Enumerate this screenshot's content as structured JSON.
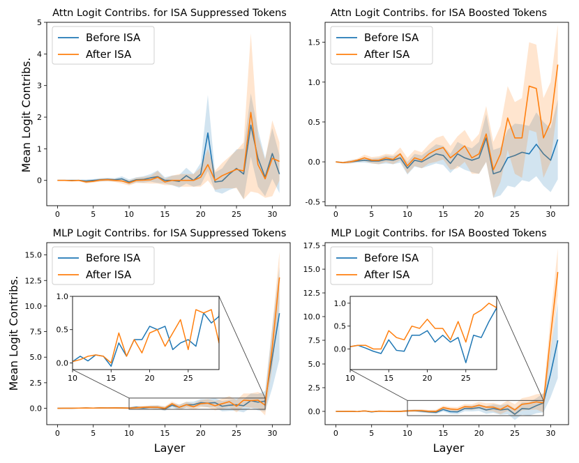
{
  "chart_data": [
    {
      "type": "line",
      "title": "Attn Logit Contribs. for ISA Suppressed Tokens",
      "xlabel": "",
      "ylabel": "Mean Logit Contribs.",
      "xlim": [
        -1.5,
        32.5
      ],
      "ylim": [
        -0.8,
        5
      ],
      "xticks": [
        0,
        5,
        10,
        15,
        20,
        25,
        30
      ],
      "yticks": [
        0,
        1,
        2,
        3,
        4,
        5
      ],
      "legend": "top-left",
      "x": [
        0,
        1,
        2,
        3,
        4,
        5,
        6,
        7,
        8,
        9,
        10,
        11,
        12,
        13,
        14,
        15,
        16,
        17,
        18,
        19,
        20,
        21,
        22,
        23,
        24,
        25,
        26,
        27,
        28,
        29,
        30,
        31
      ],
      "series": [
        {
          "name": "Before ISA",
          "color": "#1f77b4",
          "values": [
            0,
            0,
            0,
            0,
            -0.02,
            0,
            0.02,
            0.03,
            0.02,
            0.05,
            -0.05,
            0.02,
            0.03,
            0.08,
            0.12,
            0,
            0,
            -0.03,
            0.15,
            0,
            0.2,
            1.5,
            -0.05,
            -0.02,
            0.2,
            0.38,
            0.2,
            1.75,
            0.7,
            0.1,
            0.85,
            0.2
          ],
          "band": [
            0.01,
            0.01,
            0.02,
            0.02,
            0.05,
            0.04,
            0.05,
            0.05,
            0.05,
            0.08,
            0.08,
            0.08,
            0.1,
            0.12,
            0.2,
            0.1,
            0.15,
            0.2,
            0.25,
            0.2,
            0.35,
            1.2,
            0.3,
            0.4,
            0.5,
            0.6,
            0.8,
            1.0,
            0.9,
            0.6,
            0.8,
            0.6
          ]
        },
        {
          "name": "After ISA",
          "color": "#ff7f0e",
          "values": [
            0,
            0,
            -0.01,
            0,
            -0.05,
            -0.03,
            0.01,
            0.02,
            0,
            -0.02,
            -0.08,
            0,
            0.01,
            0.02,
            0.1,
            -0.05,
            0,
            0,
            0,
            0,
            0.1,
            0.5,
            0,
            0.15,
            0.25,
            0.35,
            0.3,
            2.15,
            0.5,
            0.05,
            0.7,
            0.6
          ],
          "band": [
            0.01,
            0.01,
            0.02,
            0.02,
            0.05,
            0.04,
            0.05,
            0.05,
            0.05,
            0.08,
            0.08,
            0.08,
            0.1,
            0.12,
            0.2,
            0.1,
            0.15,
            0.2,
            0.2,
            0.2,
            0.3,
            0.5,
            0.3,
            0.4,
            0.5,
            0.6,
            0.9,
            2.5,
            0.9,
            0.6,
            1.2,
            0.6
          ]
        }
      ]
    },
    {
      "type": "line",
      "title": "Attn Logit Contribs. for ISA Boosted Tokens",
      "xlabel": "",
      "ylabel": "",
      "xlim": [
        -1.5,
        32.5
      ],
      "ylim": [
        -0.55,
        1.75
      ],
      "xticks": [
        0,
        5,
        10,
        15,
        20,
        25,
        30
      ],
      "yticks": [
        -0.5,
        0.0,
        0.5,
        1.0,
        1.5
      ],
      "legend": "top-left",
      "x": [
        0,
        1,
        2,
        3,
        4,
        5,
        6,
        7,
        8,
        9,
        10,
        11,
        12,
        13,
        14,
        15,
        16,
        17,
        18,
        19,
        20,
        21,
        22,
        23,
        24,
        25,
        26,
        27,
        28,
        29,
        30,
        31
      ],
      "series": [
        {
          "name": "Before ISA",
          "color": "#1f77b4",
          "values": [
            0,
            -0.01,
            0,
            0.01,
            0.02,
            0.01,
            0.01,
            0.03,
            0.02,
            0.05,
            -0.08,
            0.02,
            0,
            0.05,
            0.1,
            0.08,
            -0.02,
            0.1,
            0.05,
            0.02,
            0.05,
            0.3,
            -0.15,
            -0.12,
            0.05,
            0.08,
            0.12,
            0.1,
            0.22,
            0.1,
            0.02,
            0.28
          ],
          "band": [
            0.01,
            0.01,
            0.02,
            0.02,
            0.03,
            0.03,
            0.04,
            0.05,
            0.05,
            0.06,
            0.08,
            0.08,
            0.08,
            0.1,
            0.12,
            0.12,
            0.12,
            0.15,
            0.15,
            0.15,
            0.2,
            0.3,
            0.3,
            0.3,
            0.35,
            0.4,
            0.35,
            0.35,
            0.4,
            0.4,
            0.4,
            0.5
          ]
        },
        {
          "name": "After ISA",
          "color": "#ff7f0e",
          "values": [
            0,
            -0.01,
            0,
            0.02,
            0.05,
            0.02,
            0.02,
            0.05,
            0.03,
            0.1,
            -0.05,
            0.05,
            0.02,
            0.1,
            0.15,
            0.18,
            0.05,
            0.12,
            0.2,
            0.05,
            0.1,
            0.35,
            -0.1,
            0.1,
            0.55,
            0.3,
            0.3,
            0.95,
            0.92,
            0.3,
            0.5,
            1.22
          ],
          "band": [
            0.01,
            0.01,
            0.02,
            0.02,
            0.04,
            0.04,
            0.05,
            0.05,
            0.06,
            0.08,
            0.1,
            0.1,
            0.1,
            0.12,
            0.15,
            0.15,
            0.15,
            0.2,
            0.2,
            0.2,
            0.25,
            0.35,
            0.35,
            0.35,
            0.4,
            0.45,
            0.5,
            0.55,
            0.55,
            0.5,
            0.5,
            0.5
          ]
        }
      ]
    },
    {
      "type": "line",
      "title": "MLP Logit Contribs. for ISA Suppressed Tokens",
      "xlabel": "Layer",
      "ylabel": "Mean Logit Contribs.",
      "xlim": [
        -1.5,
        32.5
      ],
      "ylim": [
        -1.6,
        16.2
      ],
      "xticks": [
        0,
        5,
        10,
        15,
        20,
        25,
        30
      ],
      "yticks": [
        0.0,
        2.5,
        5.0,
        7.5,
        10.0,
        12.5,
        15.0
      ],
      "legend": "top-left",
      "x": [
        0,
        1,
        2,
        3,
        4,
        5,
        6,
        7,
        8,
        9,
        10,
        11,
        12,
        13,
        14,
        15,
        16,
        17,
        18,
        19,
        20,
        21,
        22,
        23,
        24,
        25,
        26,
        27,
        28,
        29,
        30,
        31
      ],
      "series": [
        {
          "name": "Before ISA",
          "color": "#1f77b4",
          "values": [
            0,
            0.01,
            0.01,
            0.02,
            0.03,
            0.02,
            0.04,
            0.03,
            0.04,
            0.03,
            0.02,
            0.1,
            0.03,
            0.12,
            0.1,
            -0.05,
            0.3,
            0.1,
            0.35,
            0.35,
            0.55,
            0.5,
            0.55,
            0.2,
            0.3,
            0.35,
            0.25,
            0.75,
            0.6,
            0.7,
            5.0,
            9.3
          ],
          "band": [
            0.02,
            0.02,
            0.03,
            0.04,
            0.05,
            0.05,
            0.05,
            0.06,
            0.07,
            0.08,
            0.1,
            0.12,
            0.14,
            0.15,
            0.18,
            0.2,
            0.22,
            0.25,
            0.28,
            0.3,
            0.35,
            0.4,
            0.45,
            0.5,
            0.55,
            0.6,
            0.65,
            0.7,
            0.8,
            1.0,
            3.0,
            4.5
          ]
        },
        {
          "name": "After ISA",
          "color": "#ff7f0e",
          "values": [
            0,
            0.01,
            0.01,
            0.02,
            0.03,
            0.02,
            0.04,
            0.03,
            0.04,
            0.03,
            0.02,
            0.05,
            0.1,
            0.12,
            0.1,
            0,
            0.45,
            0.1,
            0.35,
            0.15,
            0.45,
            0.5,
            0.25,
            0.45,
            0.65,
            0.2,
            0.8,
            0.75,
            0.8,
            0.3,
            6.0,
            12.8
          ],
          "band": [
            0.02,
            0.02,
            0.03,
            0.04,
            0.05,
            0.05,
            0.05,
            0.06,
            0.07,
            0.08,
            0.1,
            0.12,
            0.14,
            0.15,
            0.18,
            0.2,
            0.22,
            0.25,
            0.28,
            0.3,
            0.35,
            0.4,
            0.45,
            0.5,
            0.55,
            0.6,
            0.65,
            0.7,
            0.8,
            1.0,
            2.0,
            2.5
          ]
        }
      ],
      "inset": {
        "xlim": [
          10,
          29
        ],
        "ylim": [
          -0.1,
          1.0
        ],
        "xticks": [
          10,
          15,
          20,
          25
        ],
        "yticks": [
          0.0,
          0.5,
          1.0
        ],
        "zoom_box": {
          "x": [
            10,
            29
          ],
          "y": [
            -0.1,
            1.0
          ]
        }
      }
    },
    {
      "type": "line",
      "title": "MLP Logit Contribs. for ISA Boosted Tokens",
      "xlabel": "Layer",
      "ylabel": "",
      "xlim": [
        -1.5,
        32.5
      ],
      "ylim": [
        -1.4,
        17.8
      ],
      "xticks": [
        0,
        5,
        10,
        15,
        20,
        25,
        30
      ],
      "yticks": [
        0.0,
        2.5,
        5.0,
        7.5,
        10.0,
        12.5,
        15.0,
        17.5
      ],
      "legend": "top-left",
      "x": [
        0,
        1,
        2,
        3,
        4,
        5,
        6,
        7,
        8,
        9,
        10,
        11,
        12,
        13,
        14,
        15,
        16,
        17,
        18,
        19,
        20,
        21,
        22,
        23,
        24,
        25,
        26,
        27,
        28,
        29,
        30,
        31
      ],
      "series": [
        {
          "name": "Before ISA",
          "color": "#1f77b4",
          "values": [
            0,
            0,
            0.01,
            -0.02,
            0.05,
            -0.05,
            0.02,
            0.01,
            0,
            0,
            0.05,
            0.08,
            0.02,
            -0.05,
            -0.1,
            0.2,
            -0.03,
            -0.05,
            0.3,
            0.3,
            0.4,
            0.15,
            0.3,
            0.15,
            0.25,
            -0.3,
            0.3,
            0.25,
            0.6,
            0.9,
            4.0,
            7.5
          ],
          "band": [
            0.02,
            0.02,
            0.03,
            0.04,
            0.05,
            0.05,
            0.05,
            0.06,
            0.07,
            0.08,
            0.1,
            0.12,
            0.14,
            0.15,
            0.18,
            0.2,
            0.22,
            0.25,
            0.28,
            0.3,
            0.35,
            0.4,
            0.45,
            0.5,
            0.55,
            0.6,
            0.65,
            0.7,
            0.8,
            1.0,
            2.5,
            4.0
          ]
        },
        {
          "name": "After ISA",
          "color": "#ff7f0e",
          "values": [
            0,
            0,
            0.01,
            -0.02,
            0.05,
            -0.03,
            0.02,
            0.01,
            0,
            0,
            0.05,
            0.08,
            0.08,
            0,
            0,
            0.4,
            0.25,
            0.2,
            0.5,
            0.45,
            0.65,
            0.45,
            0.45,
            0.2,
            0.6,
            0.15,
            0.75,
            0.85,
            1.0,
            0.9,
            8.0,
            14.7
          ],
          "band": [
            0.02,
            0.02,
            0.03,
            0.04,
            0.05,
            0.05,
            0.05,
            0.06,
            0.07,
            0.08,
            0.1,
            0.12,
            0.14,
            0.15,
            0.18,
            0.2,
            0.22,
            0.25,
            0.28,
            0.3,
            0.35,
            0.4,
            0.45,
            0.5,
            0.55,
            0.6,
            0.65,
            0.7,
            0.8,
            1.0,
            2.0,
            2.5
          ]
        }
      ],
      "inset": {
        "xlim": [
          10,
          29
        ],
        "ylim": [
          -0.45,
          1.15
        ],
        "xticks": [
          10,
          15,
          20,
          25
        ],
        "yticks": [
          0.0,
          0.5,
          1.0
        ],
        "zoom_box": {
          "x": [
            10,
            29
          ],
          "y": [
            -0.45,
            1.15
          ]
        }
      }
    }
  ]
}
